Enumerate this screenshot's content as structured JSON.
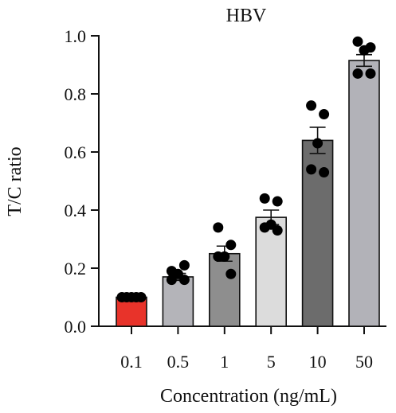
{
  "chart_data": {
    "type": "bar",
    "title": "HBV",
    "xlabel": "Concentration (ng/mL)",
    "ylabel": "T/C ratio",
    "categories": [
      "0.1",
      "0.5",
      "1",
      "5",
      "10",
      "50"
    ],
    "values": [
      0.1,
      0.17,
      0.25,
      0.375,
      0.64,
      0.915
    ],
    "errors": [
      0.0,
      0.012,
      0.026,
      0.025,
      0.045,
      0.02
    ],
    "points": [
      [
        0.1,
        0.1,
        0.1,
        0.1,
        0.1
      ],
      [
        0.19,
        0.21,
        0.18,
        0.16,
        0.16
      ],
      [
        0.34,
        0.28,
        0.24,
        0.24,
        0.18
      ],
      [
        0.44,
        0.43,
        0.35,
        0.34,
        0.33
      ],
      [
        0.76,
        0.73,
        0.63,
        0.54,
        0.53
      ],
      [
        0.98,
        0.96,
        0.95,
        0.87,
        0.87
      ]
    ],
    "bar_colors": [
      "#e8332a",
      "#b4b4b9",
      "#8e8e8e",
      "#dcdcdc",
      "#6c6c6c",
      "#b2b2b8"
    ],
    "point_color": "#000000",
    "ylim": [
      0,
      1.0
    ],
    "yticks": [
      "0.0",
      "0.2",
      "0.4",
      "0.6",
      "0.8",
      "1.0"
    ],
    "grid": false,
    "legend": "none"
  }
}
